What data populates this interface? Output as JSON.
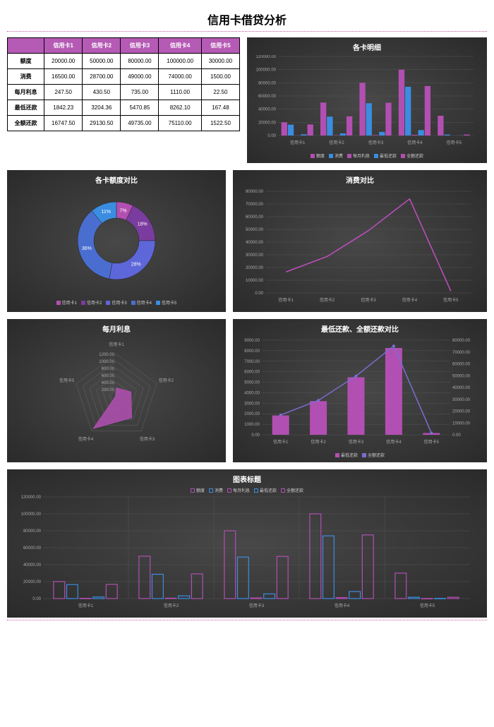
{
  "title": "信用卡借贷分析",
  "colors": {
    "purple": "#b24fb2",
    "purple_dark": "#7a3c9e",
    "blue": "#3a8de0",
    "blue_dark": "#2d6eb0",
    "cyan": "#4fc3f7",
    "magenta": "#d24aa8",
    "grid": "#555555",
    "text": "#aaaaaa",
    "panel_bg": "#333333",
    "header_bg": "#b55ab5"
  },
  "cards": [
    "信用卡1",
    "信用卡2",
    "信用卡3",
    "信用卡4",
    "信用卡5"
  ],
  "table": {
    "rows": [
      {
        "label": "额度",
        "values": [
          "20000.00",
          "50000.00",
          "80000.00",
          "100000.00",
          "30000.00"
        ]
      },
      {
        "label": "消费",
        "values": [
          "16500.00",
          "28700.00",
          "49000.00",
          "74000.00",
          "1500.00"
        ]
      },
      {
        "label": "每月利息",
        "values": [
          "247.50",
          "430.50",
          "735.00",
          "1110.00",
          "22.50"
        ]
      },
      {
        "label": "最低还款",
        "values": [
          "1842.23",
          "3204.36",
          "5470.85",
          "8262.10",
          "167.48"
        ]
      },
      {
        "label": "全额还款",
        "values": [
          "16747.50",
          "29130.50",
          "49735.00",
          "75110.00",
          "1522.50"
        ]
      }
    ]
  },
  "bar_detail": {
    "title": "各卡明细",
    "ylim": [
      0,
      120000
    ],
    "ytick_step": 20000,
    "series": [
      "额度",
      "消费",
      "每月利息",
      "最低还款",
      "全额还款"
    ],
    "series_colors": [
      "#b24fb2",
      "#3a8de0",
      "#b24fb2",
      "#3a8de0",
      "#b24fb2"
    ],
    "data": {
      "额度": [
        20000,
        50000,
        80000,
        100000,
        30000
      ],
      "消费": [
        16500,
        28700,
        49000,
        74000,
        1500
      ],
      "每月利息": [
        247.5,
        430.5,
        735,
        1110,
        22.5
      ],
      "最低还款": [
        1842.23,
        3204.36,
        5470.85,
        8262.1,
        167.48
      ],
      "全额还款": [
        16747.5,
        29130.5,
        49735,
        75110,
        1522.5
      ]
    }
  },
  "donut": {
    "title": "各卡额度对比",
    "slices": [
      {
        "label": "信用卡1",
        "pct": 7,
        "color": "#b24fb2"
      },
      {
        "label": "信用卡2",
        "pct": 18,
        "color": "#7a3c9e"
      },
      {
        "label": "信用卡3",
        "pct": 28,
        "color": "#5e67d9"
      },
      {
        "label": "信用卡4",
        "pct": 36,
        "color": "#4a6ed0"
      },
      {
        "label": "信用卡5",
        "pct": 11,
        "color": "#3a8de0"
      }
    ]
  },
  "line_consume": {
    "title": "消费对比",
    "ylim": [
      0,
      80000
    ],
    "ytick_step": 10000,
    "color": "#c04fc0",
    "values": [
      16500,
      28700,
      49000,
      74000,
      1500
    ]
  },
  "radar": {
    "title": "每月利息",
    "rings": [
      200,
      400,
      600,
      800,
      1000,
      1200
    ],
    "max": 1200,
    "values": [
      247.5,
      430.5,
      735,
      1110,
      22.5
    ],
    "fill": "#b24fb2"
  },
  "combo": {
    "title": "最低还款、全额还款对比",
    "ylim_left": [
      0,
      9000
    ],
    "ytick_left": 1000,
    "ylim_right": [
      0,
      80000
    ],
    "ytick_right": 10000,
    "bar_color": "#b24fb2",
    "line_color": "#7a6ed0",
    "bars": [
      1842.23,
      3204.36,
      5470.85,
      8262.1,
      167.48
    ],
    "line": [
      16747.5,
      29130.5,
      49735,
      75110,
      1522.5
    ],
    "legend": [
      "最低还款",
      "全额还款"
    ]
  },
  "outline_bar": {
    "title": "图表标题",
    "ylim": [
      0,
      120000
    ],
    "ytick_step": 20000,
    "series": [
      "额度",
      "消费",
      "每月利息",
      "最低还款",
      "全额还款"
    ],
    "series_colors": [
      "#b24fb2",
      "#3a8de0",
      "#b24fb2",
      "#3a8de0",
      "#b24fb2"
    ],
    "data": {
      "额度": [
        20000,
        50000,
        80000,
        100000,
        30000
      ],
      "消费": [
        16500,
        28700,
        49000,
        74000,
        1500
      ],
      "每月利息": [
        247.5,
        430.5,
        735,
        1110,
        22.5
      ],
      "最低还款": [
        1842.23,
        3204.36,
        5470.85,
        8262.1,
        167.48
      ],
      "全额还款": [
        16747.5,
        29130.5,
        49735,
        75110,
        1522.5
      ]
    }
  }
}
